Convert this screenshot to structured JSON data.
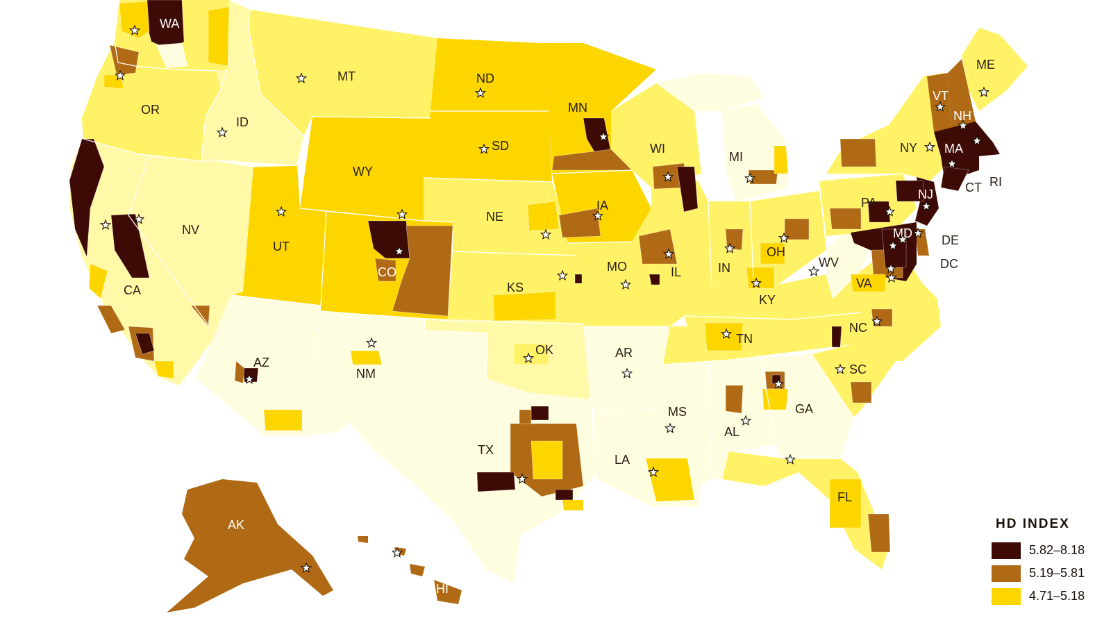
{
  "legend": {
    "title": "HD INDEX",
    "items": [
      {
        "label": "5.82–8.18",
        "color": "#3d0a05"
      },
      {
        "label": "5.19–5.81",
        "color": "#b06a16"
      },
      {
        "label": "4.71–5.18",
        "color": "#fdd600"
      }
    ]
  },
  "palette": {
    "lowest": "#fffde0",
    "low": "#fff9a8",
    "low_mid": "#fff266",
    "mid": "#fdd600",
    "high": "#b06a16",
    "top": "#3d0a05"
  },
  "states": [
    {
      "abbr": "WA"
    },
    {
      "abbr": "OR"
    },
    {
      "abbr": "CA"
    },
    {
      "abbr": "ID"
    },
    {
      "abbr": "NV"
    },
    {
      "abbr": "MT"
    },
    {
      "abbr": "WY"
    },
    {
      "abbr": "UT"
    },
    {
      "abbr": "AZ"
    },
    {
      "abbr": "CO"
    },
    {
      "abbr": "NM"
    },
    {
      "abbr": "ND"
    },
    {
      "abbr": "SD"
    },
    {
      "abbr": "NE"
    },
    {
      "abbr": "KS"
    },
    {
      "abbr": "OK"
    },
    {
      "abbr": "TX"
    },
    {
      "abbr": "MN"
    },
    {
      "abbr": "IA"
    },
    {
      "abbr": "MO"
    },
    {
      "abbr": "AR"
    },
    {
      "abbr": "LA"
    },
    {
      "abbr": "WI"
    },
    {
      "abbr": "IL"
    },
    {
      "abbr": "MI"
    },
    {
      "abbr": "IN"
    },
    {
      "abbr": "OH"
    },
    {
      "abbr": "KY"
    },
    {
      "abbr": "TN"
    },
    {
      "abbr": "MS"
    },
    {
      "abbr": "AL"
    },
    {
      "abbr": "GA"
    },
    {
      "abbr": "FL"
    },
    {
      "abbr": "SC"
    },
    {
      "abbr": "NC"
    },
    {
      "abbr": "VA"
    },
    {
      "abbr": "WV"
    },
    {
      "abbr": "PA"
    },
    {
      "abbr": "NY"
    },
    {
      "abbr": "ME"
    },
    {
      "abbr": "VT"
    },
    {
      "abbr": "NH"
    },
    {
      "abbr": "MA"
    },
    {
      "abbr": "CT"
    },
    {
      "abbr": "RI"
    },
    {
      "abbr": "NJ"
    },
    {
      "abbr": "DE"
    },
    {
      "abbr": "MD"
    },
    {
      "abbr": "DC"
    },
    {
      "abbr": "AK"
    },
    {
      "abbr": "HI"
    }
  ]
}
